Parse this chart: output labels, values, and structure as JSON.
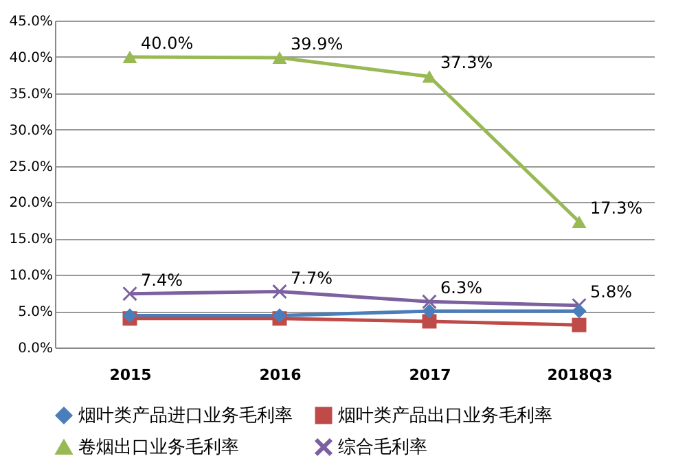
{
  "chart_data": {
    "type": "line",
    "categories": [
      "2015",
      "2016",
      "2017",
      "2018Q3"
    ],
    "series": [
      {
        "name": "烟叶类产品进口业务毛利率",
        "color": "#4a7ebb",
        "marker": "diamond",
        "values": [
          4.4,
          4.4,
          5.0,
          5.0
        ]
      },
      {
        "name": "烟叶类产品出口业务毛利率",
        "color": "#be4b48",
        "marker": "square",
        "values": [
          4.0,
          4.0,
          3.6,
          3.1
        ]
      },
      {
        "name": "卷烟出口业务毛利率",
        "color": "#98b954",
        "marker": "triangle",
        "values": [
          40.0,
          39.9,
          37.3,
          17.3
        ],
        "value_labels": [
          "40.0%",
          "39.9%",
          "37.3%",
          "17.3%"
        ]
      },
      {
        "name": "综合毛利率",
        "color": "#7d60a0",
        "marker": "cross",
        "values": [
          7.4,
          7.7,
          6.3,
          5.8
        ],
        "value_labels": [
          "7.4%",
          "7.7%",
          "6.3%",
          "5.8%"
        ]
      }
    ],
    "ylim": [
      0,
      45
    ],
    "yticks": [
      {
        "value": 0,
        "label": "0.0%"
      },
      {
        "value": 5,
        "label": "5.0%"
      },
      {
        "value": 10,
        "label": "10.0%"
      },
      {
        "value": 15,
        "label": "15.0%"
      },
      {
        "value": 20,
        "label": "20.0%"
      },
      {
        "value": 25,
        "label": "25.0%"
      },
      {
        "value": 30,
        "label": "30.0%"
      },
      {
        "value": 35,
        "label": "35.0%"
      },
      {
        "value": 40,
        "label": "40.0%"
      },
      {
        "value": 45,
        "label": "45.0%"
      }
    ],
    "grid": "y",
    "legend": "bottom"
  }
}
